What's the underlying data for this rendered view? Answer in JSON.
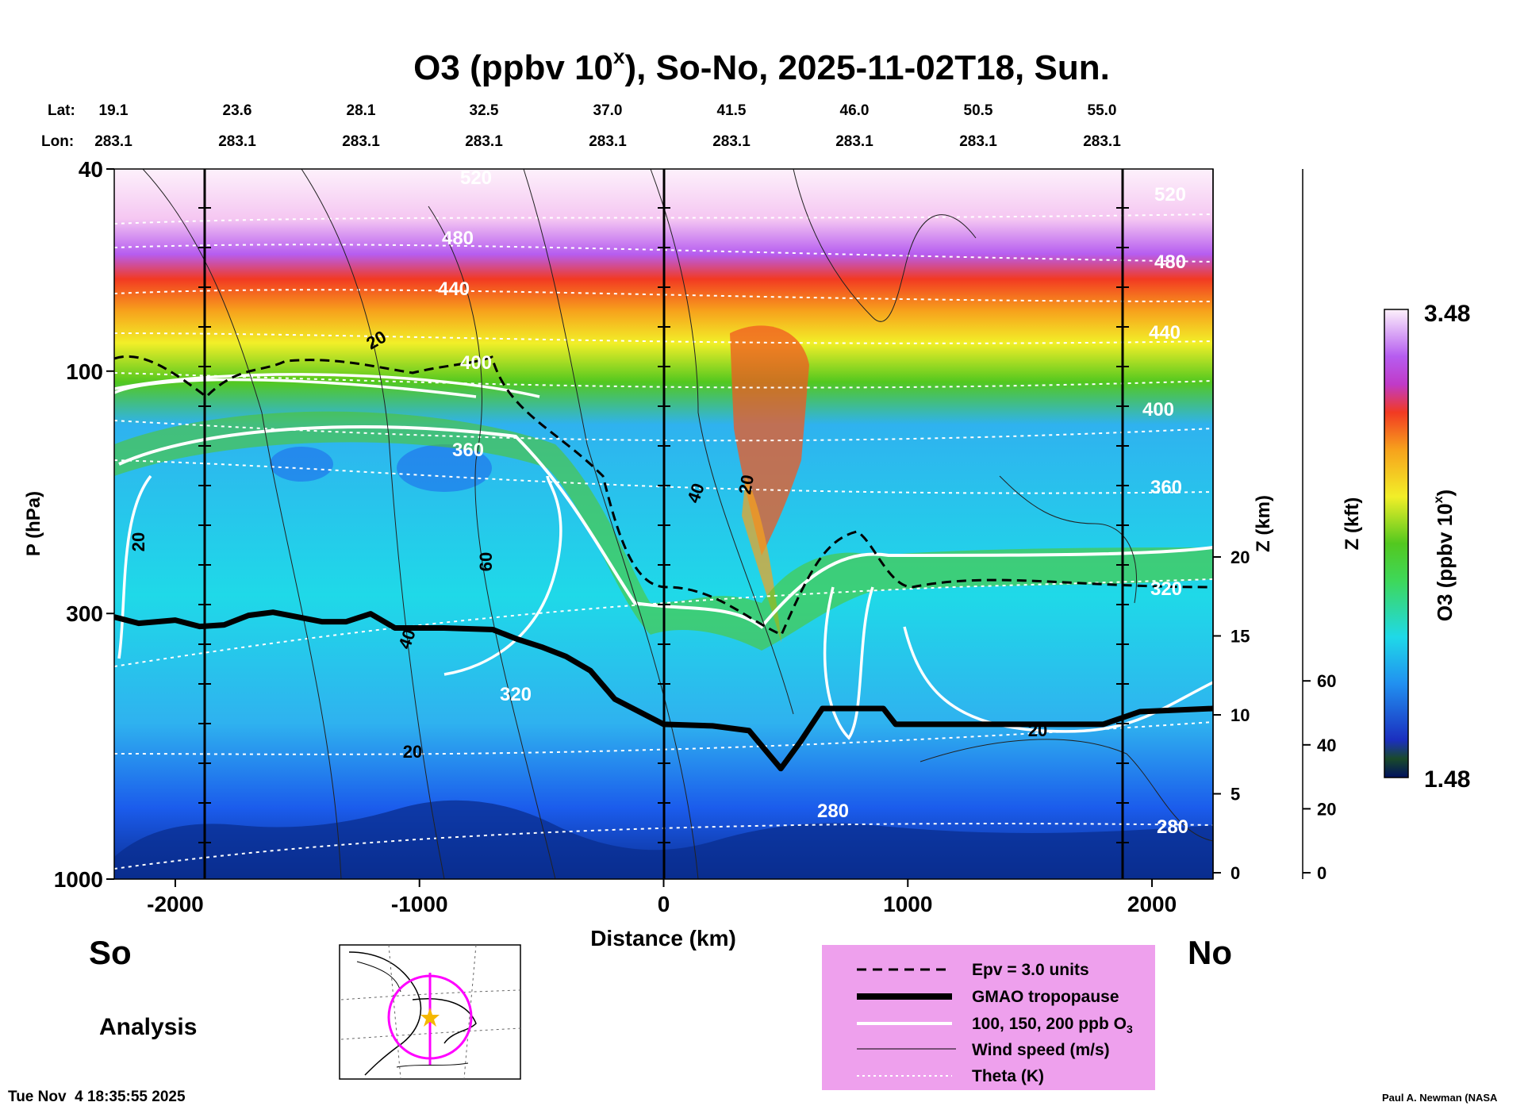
{
  "chart_data": {
    "type": "heatmap",
    "title_main": "O3 (ppbv 10",
    "title_sup": "x",
    "title_rest": "), So-No, 2025-11-02T18, Sun.",
    "xlabel": "Distance (km)",
    "ylabel": "P (hPa)",
    "y2label": "Z (km)",
    "y3label": "Z (kft)",
    "xlim": [
      -2250,
      2250
    ],
    "ylim_hpa": [
      1000,
      40
    ],
    "x_ticks": [
      "-2000",
      "-1000",
      "0",
      "1000",
      "2000"
    ],
    "y_ticks": [
      "40",
      "100",
      "300",
      "1000"
    ],
    "z_km_ticks": [
      "0",
      "5",
      "10",
      "15",
      "20"
    ],
    "z_kft_ticks": [
      "0",
      "20",
      "40",
      "60"
    ],
    "lat_label": "Lat:",
    "lon_label": "Lon:",
    "lats": [
      "19.1",
      "23.6",
      "28.1",
      "32.5",
      "37.0",
      "41.5",
      "46.0",
      "50.5",
      "55.0"
    ],
    "lons": [
      "283.1",
      "283.1",
      "283.1",
      "283.1",
      "283.1",
      "283.1",
      "283.1",
      "283.1",
      "283.1"
    ],
    "colorbar": {
      "label": "O3 (ppbv 10",
      "label_sup": "x",
      "label_end": ")",
      "max": "3.48",
      "min": "1.48"
    },
    "theta_labels": [
      "520",
      "480",
      "440",
      "400",
      "360",
      "320",
      "280",
      "520",
      "480",
      "440",
      "400",
      "360",
      "320",
      "280"
    ],
    "wind_labels": [
      "20",
      "20",
      "60",
      "40",
      "20",
      "20",
      "40",
      "20"
    ],
    "tropopause_km": [
      [
        -2250,
        16.2
      ],
      [
        -2150,
        15.8
      ],
      [
        -2000,
        16.0
      ],
      [
        -1900,
        15.6
      ],
      [
        -1800,
        15.7
      ],
      [
        -1700,
        16.3
      ],
      [
        -1600,
        16.5
      ],
      [
        -1500,
        16.2
      ],
      [
        -1400,
        15.9
      ],
      [
        -1300,
        15.9
      ],
      [
        -1200,
        16.4
      ],
      [
        -1100,
        15.5
      ],
      [
        -900,
        15.5
      ],
      [
        -700,
        15.4
      ],
      [
        -600,
        14.8
      ],
      [
        -500,
        14.3
      ],
      [
        -400,
        13.7
      ],
      [
        -300,
        12.8
      ],
      [
        -200,
        11.0
      ],
      [
        -100,
        10.2
      ],
      [
        0,
        9.4
      ],
      [
        200,
        9.3
      ],
      [
        350,
        9.0
      ],
      [
        480,
        6.6
      ],
      [
        560,
        8.3
      ],
      [
        650,
        10.4
      ],
      [
        900,
        10.4
      ],
      [
        950,
        9.4
      ],
      [
        1500,
        9.4
      ],
      [
        1800,
        9.4
      ],
      [
        1950,
        10.2
      ],
      [
        2250,
        10.4
      ]
    ]
  },
  "text": {
    "so_label": "So",
    "no_label": "No",
    "analysis_label": "Analysis",
    "timestamp": "Tue Nov  4 18:35:55 2025",
    "credit": "Paul A. Newman (NASA"
  },
  "legend": {
    "items": [
      {
        "label": "Epv = 3.0 units",
        "style": "dashed"
      },
      {
        "label": "GMAO tropopause",
        "style": "thick"
      },
      {
        "label": "100, 150, 200 ppb O",
        "sub": "3",
        "style": "white"
      },
      {
        "label": "Wind speed (m/s)",
        "style": "thin"
      },
      {
        "label": "Theta (K)",
        "style": "dotted"
      }
    ]
  },
  "colors": {
    "stratosphere_top": "#fbe6f8",
    "violet": "#b65df0",
    "red": "#f23a22",
    "orange": "#f7a21c",
    "yellow": "#f2ef28",
    "green": "#53c81f",
    "cyan": "#1fd9e8",
    "light_blue": "#2fb2ef",
    "blue": "#1b5cec",
    "navy": "#0a2d8f",
    "legend_bg": "#eea0ed",
    "map_track": "#ff00ff"
  }
}
